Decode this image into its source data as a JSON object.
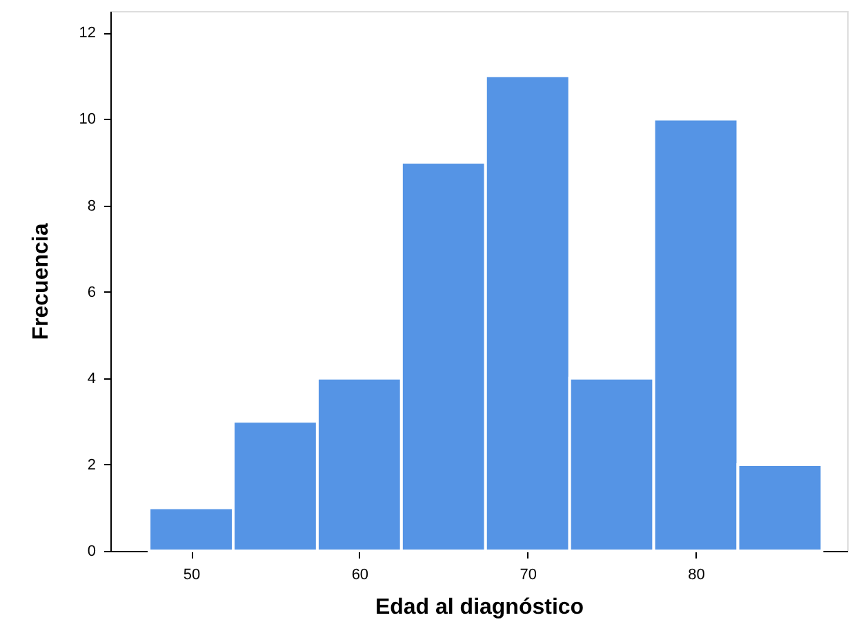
{
  "chart_data": {
    "type": "histogram",
    "xlabel": "Edad al diagnóstico",
    "ylabel": "Frecuencia",
    "bins": [
      47.5,
      52.5,
      57.5,
      62.5,
      67.5,
      72.5,
      77.5,
      82.5,
      87.5
    ],
    "values": [
      1,
      3,
      4,
      9,
      11,
      4,
      10,
      2
    ],
    "color": "#5594e5",
    "xlim": [
      45.2,
      89
    ],
    "xticks": [
      50,
      60,
      70,
      80
    ],
    "ylim": [
      0,
      12.5
    ],
    "yticks": [
      0,
      2,
      4,
      6,
      8,
      10,
      12
    ],
    "grid": false
  }
}
